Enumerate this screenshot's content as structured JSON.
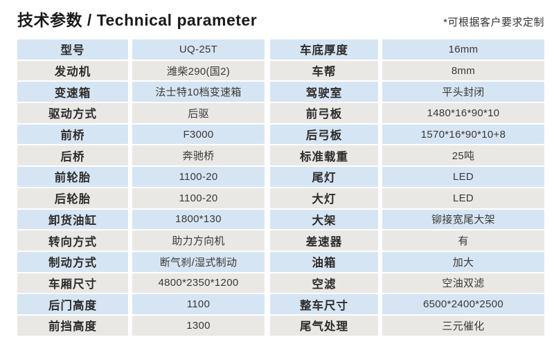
{
  "header": {
    "title": "技术参数 / Technical parameter",
    "note": "*可根据客户要求定制"
  },
  "colors": {
    "row_odd_blue": "#d6e5f3",
    "row_even_gray": "#e9e8e5",
    "title_text": "#1c1a19",
    "cell_text": "#3a3836"
  },
  "tables": {
    "left": {
      "rows": [
        {
          "label": "型号",
          "value": "UQ-25T"
        },
        {
          "label": "发动机",
          "value": "潍柴290(国2)"
        },
        {
          "label": "变速箱",
          "value": "法士特10档变速箱"
        },
        {
          "label": "驱动方式",
          "value": "后驱"
        },
        {
          "label": "前桥",
          "value": "F3000"
        },
        {
          "label": "后桥",
          "value": "奔驰桥"
        },
        {
          "label": "前轮胎",
          "value": "1100-20"
        },
        {
          "label": "后轮胎",
          "value": "1100-20"
        },
        {
          "label": "卸货油缸",
          "value": "1800*130"
        },
        {
          "label": "转向方式",
          "value": "助力方向机"
        },
        {
          "label": "制动方式",
          "value": "断气刹/湿式制动"
        },
        {
          "label": "车厢尺寸",
          "value": "4800*2350*1200"
        },
        {
          "label": "后门高度",
          "value": "1100"
        },
        {
          "label": "前挡高度",
          "value": "1300"
        }
      ]
    },
    "right": {
      "rows": [
        {
          "label": "车底厚度",
          "value": "16mm"
        },
        {
          "label": "车帮",
          "value": "8mm"
        },
        {
          "label": "驾驶室",
          "value": "平头封闭"
        },
        {
          "label": "前弓板",
          "value": "1480*16*90*10"
        },
        {
          "label": "后弓板",
          "value": "1570*16*90*10+8"
        },
        {
          "label": "标准载重",
          "value": "25吨"
        },
        {
          "label": "尾灯",
          "value": "LED"
        },
        {
          "label": "大灯",
          "value": "LED"
        },
        {
          "label": "大架",
          "value": "铆接宽尾大架"
        },
        {
          "label": "差速器",
          "value": "有"
        },
        {
          "label": "油箱",
          "value": "加大"
        },
        {
          "label": "空滤",
          "value": "空油双滤"
        },
        {
          "label": "整车尺寸",
          "value": "6500*2400*2500"
        },
        {
          "label": "尾气处理",
          "value": "三元催化"
        }
      ]
    }
  }
}
